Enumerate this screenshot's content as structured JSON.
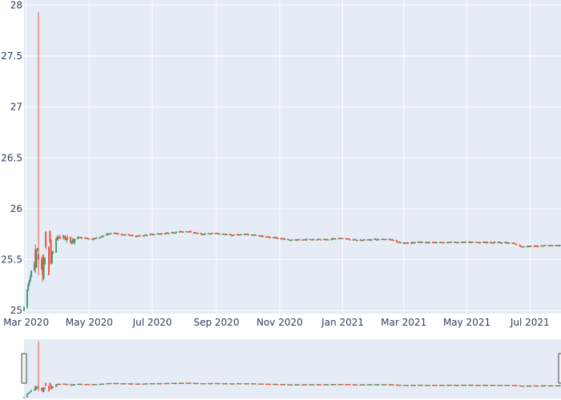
{
  "colors": {
    "plot_bg": "#e5ecf6",
    "grid": "#ffffff",
    "increasing": "#3d9970",
    "decreasing": "#ef553b",
    "text": "#2a3f5f",
    "handle_fill": "#f2f2f2",
    "handle_stroke": "#444444"
  },
  "chart_data": {
    "type": "candlestick",
    "title": "",
    "xlabel": "",
    "ylabel": "",
    "ylim": [
      24.97,
      28.05
    ],
    "yticks": [
      25,
      25.5,
      26,
      26.5,
      27,
      27.5,
      28
    ],
    "ytick_labels": [
      "25",
      "25.5",
      "26",
      "26.5",
      "27",
      "27.5",
      "28"
    ],
    "xlim": [
      "2020-02-28",
      "2021-07-31"
    ],
    "xticks": [
      "2020-03-01",
      "2020-05-01",
      "2020-07-01",
      "2020-09-01",
      "2020-11-01",
      "2021-01-01",
      "2021-03-01",
      "2021-05-01",
      "2021-07-01"
    ],
    "xtick_labels": [
      "Mar 2020",
      "May 2020",
      "Jul 2020",
      "Sep 2020",
      "Nov 2020",
      "Jan 2021",
      "Mar 2021",
      "May 2021",
      "Jul 2021"
    ],
    "grid": true,
    "legend": "none",
    "rangeslider": true,
    "anchor_points": [
      [
        "2020-02-28",
        25.01
      ],
      [
        "2020-03-02",
        25.2
      ],
      [
        "2020-03-05",
        25.35
      ],
      [
        "2020-03-09",
        25.45
      ],
      [
        "2020-03-12",
        25.62
      ],
      [
        "2020-03-16",
        25.42
      ],
      [
        "2020-03-19",
        25.5
      ],
      [
        "2020-03-23",
        25.35
      ],
      [
        "2020-03-26",
        25.55
      ],
      [
        "2020-03-30",
        25.7
      ],
      [
        "2020-04-02",
        25.72
      ],
      [
        "2020-04-06",
        25.72
      ],
      [
        "2020-04-13",
        25.68
      ],
      [
        "2020-04-20",
        25.72
      ],
      [
        "2020-04-27",
        25.71
      ],
      [
        "2020-05-04",
        25.7
      ],
      [
        "2020-05-11",
        25.72
      ],
      [
        "2020-05-18",
        25.75
      ],
      [
        "2020-05-25",
        25.76
      ],
      [
        "2020-06-01",
        25.75
      ],
      [
        "2020-06-15",
        25.73
      ],
      [
        "2020-07-01",
        25.75
      ],
      [
        "2020-07-15",
        25.76
      ],
      [
        "2020-08-03",
        25.78
      ],
      [
        "2020-08-17",
        25.75
      ],
      [
        "2020-09-01",
        25.76
      ],
      [
        "2020-09-15",
        25.74
      ],
      [
        "2020-10-01",
        25.75
      ],
      [
        "2020-10-15",
        25.73
      ],
      [
        "2020-11-01",
        25.71
      ],
      [
        "2020-11-15",
        25.69
      ],
      [
        "2020-12-01",
        25.7
      ],
      [
        "2020-12-15",
        25.7
      ],
      [
        "2021-01-01",
        25.71
      ],
      [
        "2021-01-15",
        25.69
      ],
      [
        "2021-02-01",
        25.7
      ],
      [
        "2021-02-15",
        25.7
      ],
      [
        "2021-03-01",
        25.66
      ],
      [
        "2021-03-15",
        25.67
      ],
      [
        "2021-04-01",
        25.67
      ],
      [
        "2021-04-15",
        25.67
      ],
      [
        "2021-05-01",
        25.67
      ],
      [
        "2021-05-15",
        25.67
      ],
      [
        "2021-06-01",
        25.67
      ],
      [
        "2021-06-15",
        25.66
      ],
      [
        "2021-06-22",
        25.63
      ],
      [
        "2021-07-01",
        25.63
      ],
      [
        "2021-07-15",
        25.64
      ],
      [
        "2021-07-31",
        25.64
      ]
    ],
    "special_candles": [
      {
        "date": "2020-03-10",
        "open": 25.6,
        "high": 25.65,
        "low": 25.37,
        "close": 25.42
      },
      {
        "date": "2020-03-13",
        "open": 25.55,
        "high": 27.93,
        "low": 25.35,
        "close": 25.5
      },
      {
        "date": "2020-03-17",
        "open": 25.52,
        "high": 25.55,
        "low": 25.28,
        "close": 25.35
      },
      {
        "date": "2020-03-18",
        "open": 25.32,
        "high": 25.55,
        "low": 25.3,
        "close": 25.45
      },
      {
        "date": "2020-03-20",
        "open": 25.77,
        "high": 25.78,
        "low": 25.6,
        "close": 25.62
      },
      {
        "date": "2020-03-24",
        "open": 25.78,
        "high": 25.79,
        "low": 25.66,
        "close": 25.68
      }
    ]
  }
}
